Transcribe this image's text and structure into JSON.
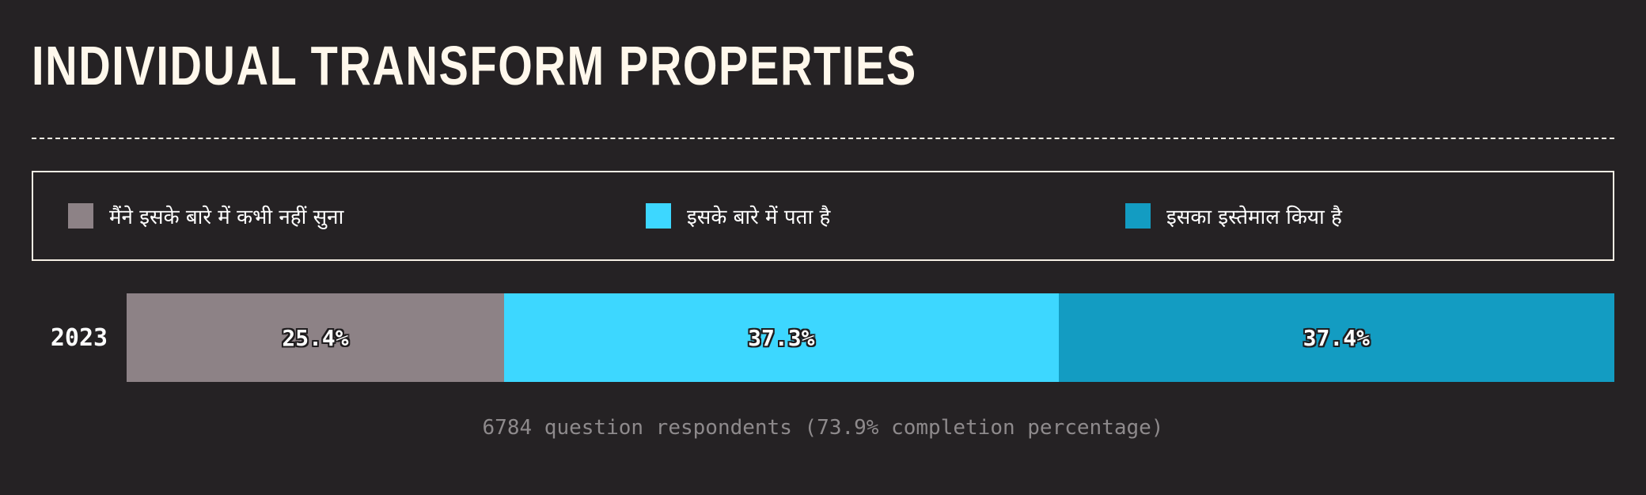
{
  "title": "INDIVIDUAL TRANSFORM PROPERTIES",
  "footer": "6784 question respondents (73.9% completion percentage)",
  "chart_data": {
    "type": "bar",
    "orientation": "horizontal",
    "stacked": true,
    "unit": "%",
    "categories": [
      "2023"
    ],
    "series": [
      {
        "name": "मैंने इसके बारे में कभी नहीं सुना",
        "values": [
          25.4
        ],
        "label": "25.4%",
        "color": "#8d8286"
      },
      {
        "name": "इसके बारे में पता है",
        "values": [
          37.3
        ],
        "label": "37.3%",
        "color": "#3dd7ff"
      },
      {
        "name": "इसका इस्तेमाल किया है",
        "values": [
          37.4
        ],
        "label": "37.4%",
        "color": "#139cc2"
      }
    ],
    "legend": "top",
    "grid": false
  }
}
